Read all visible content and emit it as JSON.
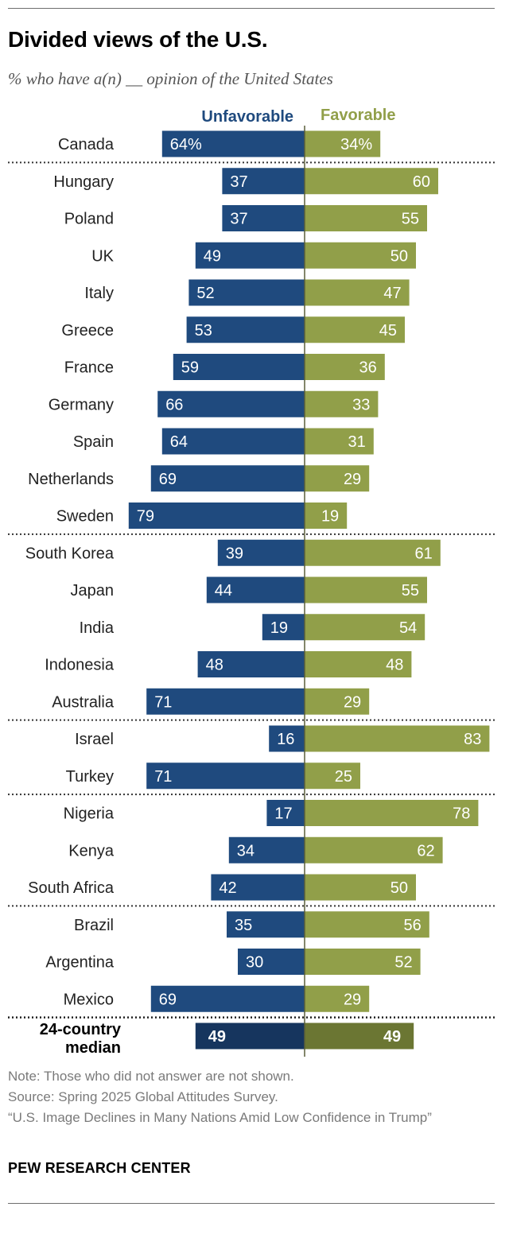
{
  "title": "Divided views of the U.S.",
  "subtitle": "% who have a(n) __ opinion of the United States",
  "colors": {
    "unfavorable": "#1f4a7e",
    "favorable": "#919f49",
    "median_unfavorable": "#16355e",
    "median_favorable": "#6b7633",
    "axis": "#5a5f3a"
  },
  "chart_data": {
    "type": "bar",
    "orientation": "horizontal-diverging",
    "legend": [
      "Unfavorable",
      "Favorable"
    ],
    "categories": [
      "Canada",
      "Hungary",
      "Poland",
      "UK",
      "Italy",
      "Greece",
      "France",
      "Germany",
      "Spain",
      "Netherlands",
      "Sweden",
      "South Korea",
      "Japan",
      "India",
      "Indonesia",
      "Australia",
      "Israel",
      "Turkey",
      "Nigeria",
      "Kenya",
      "South Africa",
      "Brazil",
      "Argentina",
      "Mexico"
    ],
    "series": [
      {
        "name": "Unfavorable",
        "values": [
          64,
          37,
          37,
          49,
          52,
          53,
          59,
          66,
          64,
          69,
          79,
          39,
          44,
          19,
          48,
          71,
          16,
          71,
          17,
          34,
          42,
          35,
          30,
          69
        ],
        "labels": [
          "64%",
          "37",
          "37",
          "49",
          "52",
          "53",
          "59",
          "66",
          "64",
          "69",
          "79",
          "39",
          "44",
          "19",
          "48",
          "71",
          "16",
          "71",
          "17",
          "34",
          "42",
          "35",
          "30",
          "69"
        ]
      },
      {
        "name": "Favorable",
        "values": [
          34,
          60,
          55,
          50,
          47,
          45,
          36,
          33,
          31,
          29,
          19,
          61,
          55,
          54,
          48,
          29,
          83,
          25,
          78,
          62,
          50,
          56,
          52,
          29
        ],
        "labels": [
          "34%",
          "60",
          "55",
          "50",
          "47",
          "45",
          "36",
          "33",
          "31",
          "29",
          "19",
          "61",
          "55",
          "54",
          "48",
          "29",
          "83",
          "25",
          "78",
          "62",
          "50",
          "56",
          "52",
          "29"
        ]
      }
    ],
    "group_breaks_after": [
      "Canada",
      "Sweden",
      "Australia",
      "Turkey",
      "South Africa",
      "Mexico"
    ],
    "median": {
      "label_line1": "24-country",
      "label_line2": "median",
      "unfavorable": 49,
      "favorable": 49,
      "unfavorable_label": "49",
      "favorable_label": "49"
    },
    "xlim": [
      0,
      100
    ]
  },
  "notes": {
    "note": "Note: Those who did not answer are not shown.",
    "source": "Source: Spring 2025 Global Attitudes Survey.",
    "report": "“U.S. Image Declines in Many Nations Amid Low Confidence in Trump”"
  },
  "brand": "PEW RESEARCH CENTER"
}
